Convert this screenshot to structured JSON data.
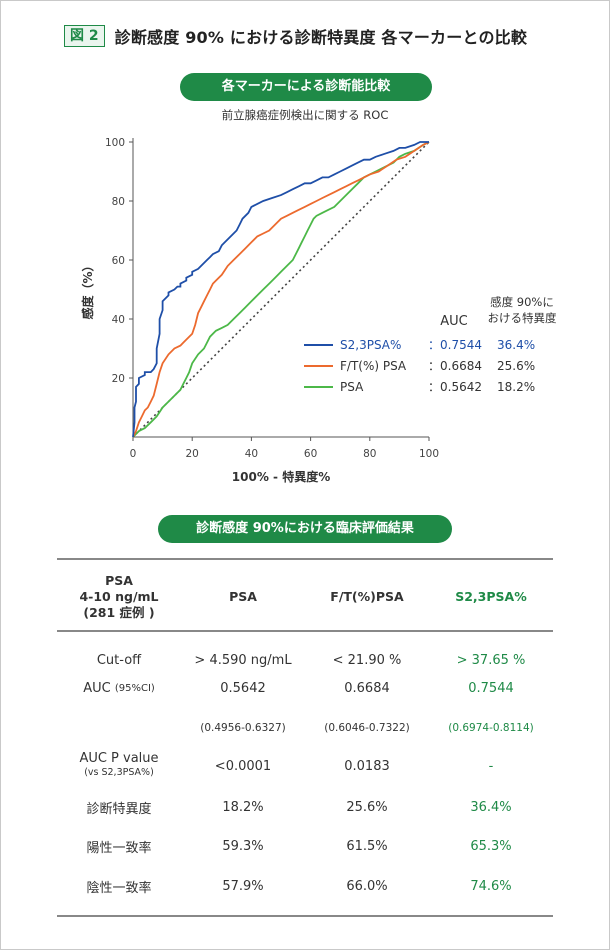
{
  "figure": {
    "badge": "図 2",
    "title": "診断感度 90% における診断特異度  各マーカーとの比較"
  },
  "chart_section": {
    "pill_label": "各マーカーによる診断能比較",
    "subtitle": "前立腺癌症例検出に関する ROC"
  },
  "chart_data": {
    "type": "line",
    "xlabel": "100% - 特異度%",
    "ylabel": "感度（%）",
    "xlim": [
      0,
      100
    ],
    "ylim": [
      0,
      100
    ],
    "x_ticks": [
      "0",
      "20",
      "40",
      "60",
      "80",
      "100"
    ],
    "y_ticks": [
      "20",
      "40",
      "60",
      "80",
      "100"
    ],
    "reference_line": "diagonal-dotted",
    "legend_header": {
      "auc": "AUC",
      "spec": "感度 90%に\nおける特異度"
    },
    "series": [
      {
        "name": "S2,3PSA%",
        "color": "#1f4fa8",
        "auc_label": "：0.7544",
        "spec_label": "36.4%",
        "x": [
          0,
          0.5,
          0.5,
          1,
          1,
          2,
          2,
          4,
          4,
          6,
          7,
          8,
          8,
          9,
          9,
          10,
          10,
          12,
          12,
          14,
          15,
          16,
          16,
          18,
          18,
          20,
          20,
          22,
          23,
          25,
          26,
          27,
          29,
          30,
          31,
          33,
          35,
          36,
          37,
          39,
          40,
          42,
          44,
          47,
          50,
          52,
          54,
          56,
          58,
          60,
          62,
          64,
          66,
          68,
          70,
          72,
          74,
          76,
          78,
          80,
          82,
          85,
          88,
          90,
          92,
          95,
          97,
          100
        ],
        "y": [
          0,
          5,
          10,
          12,
          17,
          18,
          20,
          21,
          22,
          22,
          23,
          25,
          30,
          35,
          40,
          43,
          46,
          48,
          49,
          50,
          51,
          51,
          52,
          53,
          54,
          55,
          56,
          57,
          58,
          60,
          61,
          62,
          63,
          65,
          66,
          68,
          70,
          72,
          74,
          76,
          78,
          79,
          80,
          81,
          82,
          83,
          84,
          85,
          86,
          86,
          87,
          88,
          88,
          89,
          90,
          91,
          92,
          93,
          94,
          94,
          95,
          96,
          97,
          98,
          98,
          99,
          100,
          100
        ]
      },
      {
        "name": "F/T(%) PSA",
        "color": "#ec6a2e",
        "auc_label": "：0.6684",
        "spec_label": "25.6%",
        "x": [
          0,
          1,
          2,
          3,
          4,
          5,
          6,
          7,
          8,
          9,
          10,
          12,
          14,
          16,
          17,
          18,
          19,
          20,
          21,
          22,
          23,
          24,
          25,
          26,
          27,
          28,
          30,
          32,
          34,
          36,
          38,
          40,
          42,
          44,
          46,
          48,
          50,
          52,
          54,
          56,
          58,
          60,
          62,
          64,
          66,
          68,
          70,
          72,
          74,
          76,
          78,
          80,
          83,
          86,
          89,
          92,
          95,
          98,
          100
        ],
        "y": [
          0,
          2,
          5,
          7,
          9,
          10,
          12,
          14,
          18,
          22,
          25,
          28,
          30,
          31,
          32,
          33,
          34,
          35,
          38,
          42,
          44,
          46,
          48,
          50,
          52,
          53,
          55,
          58,
          60,
          62,
          64,
          66,
          68,
          69,
          70,
          72,
          74,
          75,
          76,
          77,
          78,
          79,
          80,
          81,
          82,
          83,
          84,
          85,
          86,
          87,
          88,
          89,
          90,
          92,
          94,
          95,
          97,
          99,
          100
        ]
      },
      {
        "name": "PSA",
        "color": "#4cb848",
        "auc_label": "：0.5642",
        "spec_label": "18.2%",
        "x": [
          0,
          2,
          4,
          6,
          8,
          10,
          12,
          14,
          16,
          17,
          18,
          19,
          20,
          22,
          24,
          25,
          26,
          28,
          30,
          32,
          34,
          36,
          38,
          40,
          42,
          44,
          46,
          48,
          50,
          52,
          54,
          55,
          56,
          57,
          58,
          59,
          60,
          61,
          62,
          64,
          66,
          68,
          70,
          72,
          74,
          76,
          78,
          80,
          82,
          84,
          86,
          88,
          90,
          92,
          95,
          98,
          100
        ],
        "y": [
          0,
          2,
          3,
          5,
          7,
          10,
          12,
          14,
          16,
          18,
          20,
          22,
          25,
          28,
          30,
          32,
          34,
          36,
          37,
          38,
          40,
          42,
          44,
          46,
          48,
          50,
          52,
          54,
          56,
          58,
          60,
          62,
          64,
          66,
          68,
          70,
          72,
          74,
          75,
          76,
          77,
          78,
          80,
          82,
          84,
          86,
          88,
          89,
          90,
          91,
          92,
          93,
          95,
          96,
          97,
          99,
          100
        ]
      }
    ]
  },
  "table_section": {
    "pill_label": "診断感度 90%における臨床評価結果",
    "headers": [
      "PSA\n4-10 ng/mL\n(281 症例 )",
      "PSA",
      "F/T(%)PSA",
      "S2,3PSA%"
    ],
    "rows": [
      {
        "label": "Cut-off",
        "label_sub": "",
        "v1": "> 4.590 ng/mL",
        "v2": "< 21.90 %",
        "v3": "> 37.65 %"
      },
      {
        "label": "AUC",
        "label_sub": "(95%CI)",
        "v1": "0.5642",
        "v2": "0.6684",
        "v3": "0.7544"
      },
      {
        "label": "",
        "label_sub": "",
        "v1": "(0.4956-0.6327)",
        "v2": "(0.6046-0.7322)",
        "v3": "(0.6974-0.8114)"
      },
      {
        "label": "AUC P value",
        "label_sub": "(vs S2,3PSA%)",
        "v1": "<0.0001",
        "v2": "0.0183",
        "v3": "-"
      },
      {
        "label": "診断特異度",
        "label_sub": "",
        "v1": "18.2%",
        "v2": "25.6%",
        "v3": "36.4%"
      },
      {
        "label": "陽性一致率",
        "label_sub": "",
        "v1": "59.3%",
        "v2": "61.5%",
        "v3": "65.3%"
      },
      {
        "label": "陰性一致率",
        "label_sub": "",
        "v1": "57.9%",
        "v2": "66.0%",
        "v3": "74.6%"
      }
    ]
  }
}
